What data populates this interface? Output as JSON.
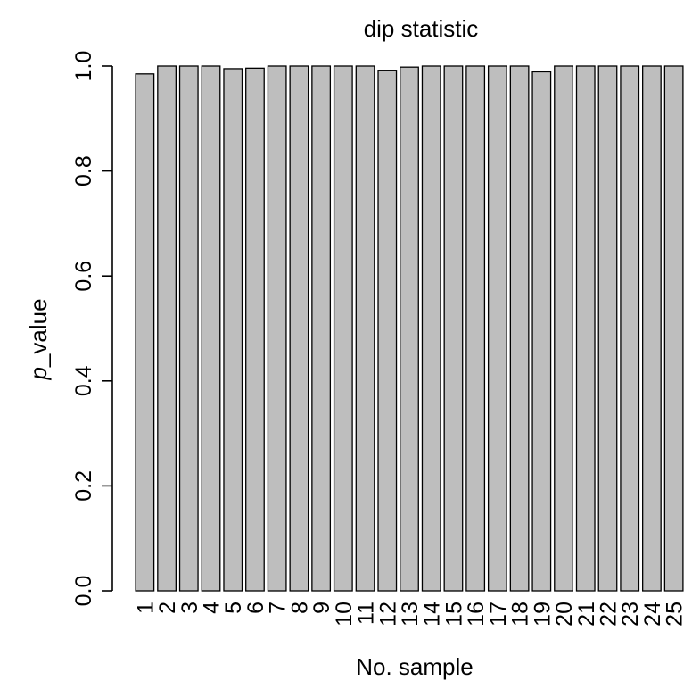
{
  "chart_data": {
    "type": "bar",
    "title": "dip statistic",
    "xlabel": "No. sample",
    "ylabel_italic": "p",
    "ylabel_rest": "_value",
    "ylim": [
      0,
      1
    ],
    "yticks": [
      "0.0",
      "0.2",
      "0.4",
      "0.6",
      "0.8",
      "1.0"
    ],
    "categories": [
      "1",
      "2",
      "3",
      "4",
      "5",
      "6",
      "7",
      "8",
      "9",
      "10",
      "11",
      "12",
      "13",
      "14",
      "15",
      "16",
      "17",
      "18",
      "19",
      "20",
      "21",
      "22",
      "23",
      "24",
      "25"
    ],
    "values": [
      0.985,
      1.0,
      1.0,
      1.0,
      0.995,
      0.996,
      1.0,
      1.0,
      1.0,
      1.0,
      1.0,
      0.992,
      0.998,
      1.0,
      1.0,
      1.0,
      1.0,
      1.0,
      0.989,
      1.0,
      1.0,
      1.0,
      1.0,
      1.0,
      1.0
    ],
    "bar_color": "#bebebe",
    "grid": false,
    "legend": "none"
  }
}
